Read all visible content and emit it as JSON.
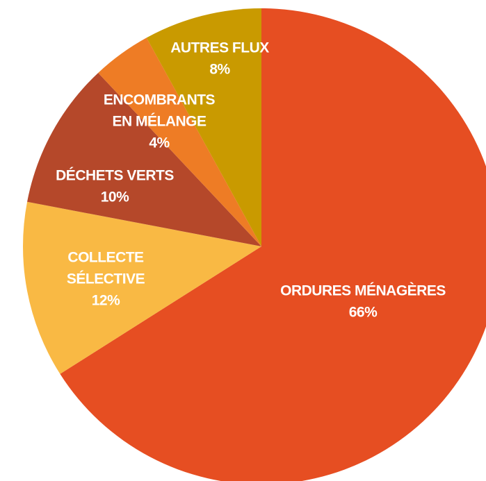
{
  "chart_data": {
    "type": "pie",
    "categories": [
      [
        "ORDURES MÉNAGÈRES"
      ],
      [
        "COLLECTE",
        "SÉLECTIVE"
      ],
      [
        "DÉCHETS VERTS"
      ],
      [
        "ENCOMBRANTS",
        "EN MÉLANGE"
      ],
      [
        "AUTRES FLUX"
      ]
    ],
    "values": [
      66,
      12,
      10,
      4,
      8
    ],
    "value_labels": [
      "66%",
      "12%",
      "10%",
      "4%",
      "8%"
    ],
    "colors": [
      "#e64e22",
      "#f9b944",
      "#b5482a",
      "#ee7c25",
      "#c99a00"
    ]
  }
}
